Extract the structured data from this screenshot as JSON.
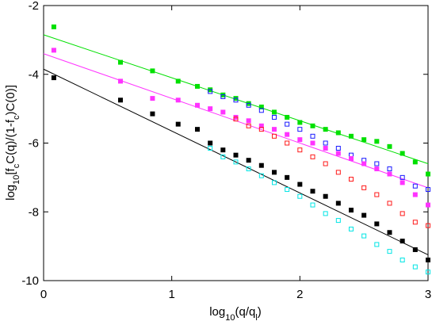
{
  "chart_data": {
    "type": "scatter",
    "xlabel_parts": [
      "log",
      "10",
      "(q/q",
      "l",
      ")"
    ],
    "ylabel_parts": [
      "log",
      "10",
      "[f",
      "c",
      "C(q)/(1-f",
      "c",
      ")C(0)]"
    ],
    "x": [
      0.08,
      0.6,
      0.85,
      1.05,
      1.2,
      1.3,
      1.4,
      1.5,
      1.6,
      1.7,
      1.8,
      1.9,
      2.0,
      2.1,
      2.2,
      2.3,
      2.4,
      2.5,
      2.6,
      2.7,
      2.8,
      2.9,
      3.0
    ],
    "series": [
      {
        "color": "#00e000",
        "values": [
          -2.62,
          -3.65,
          -3.9,
          -4.2,
          -4.35,
          -4.45,
          -4.6,
          -4.7,
          -4.85,
          -4.95,
          -5.1,
          -5.25,
          -5.4,
          -5.5,
          -5.6,
          -5.7,
          -5.8,
          -5.9,
          -5.95,
          -6.1,
          -6.3,
          -6.55,
          -6.9
        ]
      },
      {
        "color": "#1a1aff",
        "values": [
          null,
          null,
          null,
          null,
          null,
          -4.5,
          -4.65,
          -4.75,
          -4.9,
          -5.05,
          -5.25,
          -5.45,
          -5.6,
          -5.8,
          -6.0,
          -6.15,
          -6.35,
          -6.5,
          -6.6,
          -6.75,
          -7.0,
          -7.25,
          -7.35
        ]
      },
      {
        "color": "#ff33ff",
        "values": [
          -3.3,
          -4.2,
          -4.7,
          -4.75,
          -4.9,
          -5.0,
          -5.1,
          -5.25,
          -5.35,
          -5.5,
          -5.6,
          -5.75,
          -5.9,
          -6.0,
          -6.15,
          -6.3,
          -6.45,
          -6.6,
          -6.75,
          -6.9,
          -7.15,
          -7.5,
          -7.8
        ]
      },
      {
        "color": "#ff1a1a",
        "values": [
          null,
          null,
          null,
          null,
          null,
          null,
          null,
          -5.3,
          -5.5,
          -5.6,
          -5.8,
          -6.0,
          -6.2,
          -6.4,
          -6.6,
          -6.85,
          -7.05,
          -7.3,
          -7.5,
          -7.75,
          -8.05,
          -8.3,
          -8.4
        ]
      },
      {
        "color": "#000000",
        "values": [
          -4.1,
          -4.75,
          -5.15,
          -5.45,
          -5.6,
          -6.0,
          -6.2,
          -6.35,
          -6.5,
          -6.65,
          -6.85,
          -7.0,
          -7.2,
          -7.4,
          -7.55,
          -7.75,
          -7.95,
          -8.1,
          -8.35,
          -8.6,
          -8.85,
          -9.1,
          -9.4
        ]
      },
      {
        "color": "#00e5e5",
        "values": [
          null,
          null,
          null,
          null,
          null,
          -6.15,
          -6.4,
          -6.55,
          -6.75,
          -6.95,
          -7.15,
          -7.35,
          -7.55,
          -7.8,
          -8.05,
          -8.25,
          -8.5,
          -8.7,
          -8.95,
          -9.15,
          -9.4,
          -9.6,
          -9.75
        ]
      }
    ],
    "fits": [
      {
        "color": "#00e000",
        "x": [
          0,
          3
        ],
        "values": [
          -2.85,
          -6.6
        ]
      },
      {
        "color": "#ff33ff",
        "x": [
          0,
          3
        ],
        "values": [
          -3.4,
          -7.3
        ]
      },
      {
        "color": "#000000",
        "x": [
          0,
          3
        ],
        "values": [
          -3.85,
          -9.25
        ]
      }
    ],
    "xlim": [
      0,
      3
    ],
    "ylim": [
      -10,
      -2
    ],
    "xticks": [
      0,
      1,
      2,
      3
    ],
    "yticks": [
      -10,
      -8,
      -6,
      -4,
      -2
    ]
  }
}
